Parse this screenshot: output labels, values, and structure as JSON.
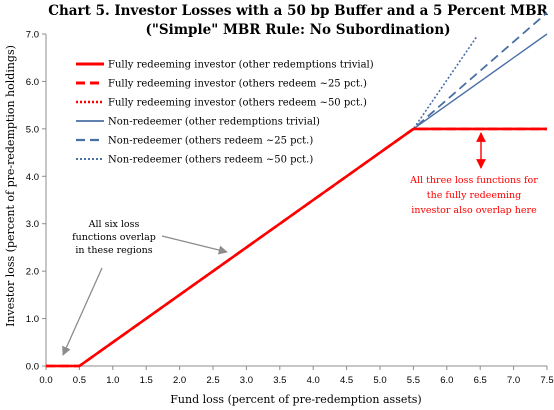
{
  "chart_data": {
    "type": "line",
    "title": "Chart 5. Investor Losses with a 50 bp Buffer and a 5 Percent MBR",
    "subtitle": "(\"Simple\" MBR Rule:  No Subordination)",
    "xlabel": "Fund loss (percent of pre-redemption assets)",
    "ylabel": "Investor loss (percent of pre-redemption holdings)",
    "xlim": [
      0,
      7.5
    ],
    "ylim": [
      0,
      7.0
    ],
    "xticks": [
      "0.0",
      "0.5",
      "1.0",
      "1.5",
      "2.0",
      "2.5",
      "3.0",
      "3.5",
      "4.0",
      "4.5",
      "5.0",
      "5.5",
      "6.0",
      "6.5",
      "7.0",
      "7.5"
    ],
    "yticks": [
      "0.0",
      "1.0",
      "2.0",
      "3.0",
      "4.0",
      "5.0",
      "6.0",
      "7.0"
    ],
    "grid": false,
    "legend_position": "top-left",
    "series": [
      {
        "name": "Fully redeeming investor (other redemptions trivial)",
        "color": "#ff0000",
        "style": "solid",
        "width": 2.6,
        "x": [
          0,
          0.5,
          5.5,
          7.5
        ],
        "y": [
          0,
          0,
          5.0,
          5.0
        ]
      },
      {
        "name": "Fully redeeming investor (others redeem ~25 pct.)",
        "color": "#ff0000",
        "style": "dash",
        "width": 2.6,
        "x": [
          0,
          0.5,
          5.5,
          7.5
        ],
        "y": [
          0,
          0,
          5.0,
          5.0
        ]
      },
      {
        "name": "Fully redeeming investor (others redeem ~50 pct.)",
        "color": "#ff0000",
        "style": "dot",
        "width": 2.2,
        "x": [
          0,
          0.5,
          5.5,
          7.5
        ],
        "y": [
          0,
          0,
          5.0,
          5.0
        ]
      },
      {
        "name": "Non-redeemer (other redemptions trivial)",
        "color": "#4a6fa5",
        "style": "solid",
        "width": 1.4,
        "x": [
          0,
          0.5,
          5.5,
          7.5
        ],
        "y": [
          0,
          0,
          5.0,
          7.0
        ]
      },
      {
        "name": "Non-redeemer (others redeem ~25 pct.)",
        "color": "#4a6fa5",
        "style": "dash",
        "width": 1.8,
        "x": [
          0,
          0.5,
          5.5,
          7.5
        ],
        "y": [
          0,
          0,
          5.0,
          7.45
        ]
      },
      {
        "name": "Non-redeemer (others redeem ~50 pct.)",
        "color": "#4a6fa5",
        "style": "dot",
        "width": 1.6,
        "x": [
          0,
          0.5,
          5.5,
          6.45
        ],
        "y": [
          0,
          0,
          5.0,
          6.95
        ]
      }
    ],
    "annotations": [
      {
        "lines": [
          "All  six loss",
          "functions overlap",
          "in these regions"
        ],
        "color": "#000000"
      },
      {
        "lines": [
          "All three loss functions for",
          "the fully redeeming",
          "investor also overlap here"
        ],
        "color": "#ff0000"
      }
    ]
  }
}
